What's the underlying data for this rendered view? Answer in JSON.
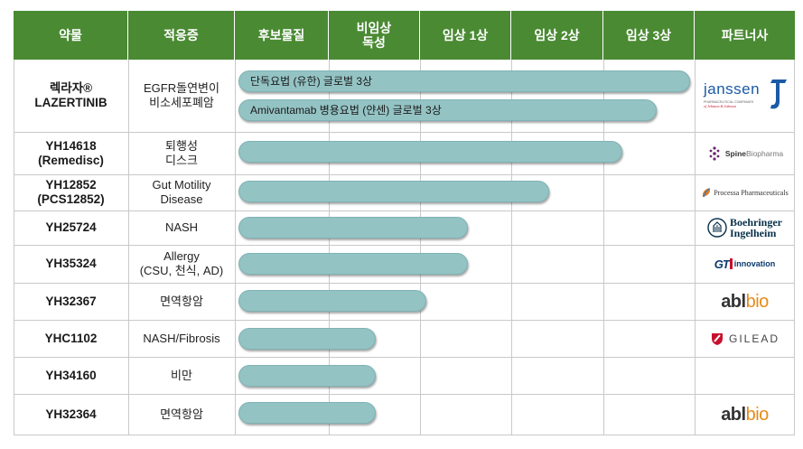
{
  "headers": {
    "drug": "약물",
    "indication": "적응증",
    "candidate": "후보물질",
    "nonclinical_line1": "비임상",
    "nonclinical_line2": "독성",
    "phase1": "임상 1상",
    "phase2": "임상 2상",
    "phase3": "임상 3상",
    "partner": "파트너사"
  },
  "rows": [
    {
      "drug_line1": "렉라자®",
      "drug_line2": "LAZERTINIB",
      "indication_line1": "EGFR돌연변이",
      "indication_line2": "비소세포폐암",
      "bars": [
        {
          "label": "단독요법 (유한) 글로벌 3상",
          "stage": "Phase 3 (late)"
        },
        {
          "label": "Amivantamab 병용요법 (얀센) 글로벌 3상",
          "stage": "Phase 3"
        }
      ],
      "partner": {
        "name": "janssen",
        "sub": "PHARMACEUTICAL COMPANIES of Johnson & Johnson"
      }
    },
    {
      "drug_line1": "YH14618",
      "drug_line2": "(Remedisc)",
      "indication_line1": "퇴행성",
      "indication_line2": "디스크",
      "stage": "Phase 3",
      "partner": {
        "name_bold": "Spine",
        "name_light": "Biopharma"
      }
    },
    {
      "drug_line1": "YH12852",
      "drug_line2": "(PCS12852)",
      "indication_line1": "Gut Motility",
      "indication_line2": "Disease",
      "stage": "Phase 2",
      "partner": {
        "name": "Processa Pharmaceuticals"
      }
    },
    {
      "drug_line1": "YH25724",
      "indication_line1": "NASH",
      "stage": "Phase 1",
      "partner": {
        "name_line1": "Boehringer",
        "name_line2": "Ingelheim"
      }
    },
    {
      "drug_line1": "YH35324",
      "indication_line1": "Allergy",
      "indication_line2": "(CSU, 천식, AD)",
      "stage": "Phase 1",
      "partner": {
        "name_mark": "GT",
        "name_text": "innovation"
      }
    },
    {
      "drug_line1": "YH32367",
      "indication_line1": "면역항암",
      "stage": "Non-clinical",
      "partner": {
        "name_bold": "abl",
        "name_light": "bio"
      }
    },
    {
      "drug_line1": "YHC1102",
      "indication_line1": "NASH/Fibrosis",
      "stage": "Non-clinical",
      "partner": {
        "name": "GILEAD"
      }
    },
    {
      "drug_line1": "YH34160",
      "indication_line1": "비만",
      "stage": "Non-clinical",
      "partner": {}
    },
    {
      "drug_line1": "YH32364",
      "indication_line1": "면역항암",
      "stage": "Non-clinical",
      "partner": {
        "name_bold": "abl",
        "name_light": "bio"
      }
    }
  ],
  "colors": {
    "header_bg": "#4a8a33",
    "header_text": "#ffffff",
    "bar_fill": "#94c3c4",
    "grid": "#c9c9c9",
    "janssen_blue": "#1a5aa6",
    "abl_orange": "#e88a1a",
    "gilead_red": "#c8102e",
    "boehringer_blue": "#08314a",
    "spine_purple": "#6b2a72"
  }
}
